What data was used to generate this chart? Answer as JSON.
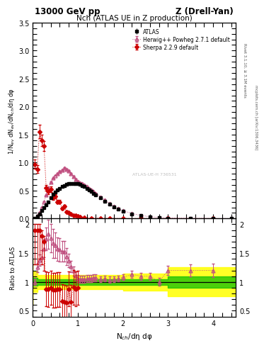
{
  "title_top": "13000 GeV pp",
  "title_right": "Z (Drell-Yan)",
  "plot_title": "Nch (ATLAS UE in Z production)",
  "ylabel_main": "1/N$_{ev}$ dN$_{ev}$/dN$_{ch}$/dη dφ",
  "ylabel_ratio": "Ratio to ATLAS",
  "xlabel": "N$_{ch}$/dη dφ",
  "right_label_top": "Rivet 3.1.10, ≥ 3.1M events",
  "right_label_bot": "mcplots.cern.ch [arXiv:1306.3436]",
  "watermark": "ATLAS-UE-H 736531",
  "legend": [
    "ATLAS",
    "Herwig++ Powheg 2.7.1 default",
    "Sherpa 2.2.9 default"
  ],
  "atlas_x": [
    0.05,
    0.1,
    0.15,
    0.2,
    0.25,
    0.3,
    0.35,
    0.4,
    0.45,
    0.5,
    0.55,
    0.6,
    0.65,
    0.7,
    0.75,
    0.8,
    0.85,
    0.9,
    0.95,
    1.0,
    1.05,
    1.1,
    1.15,
    1.2,
    1.25,
    1.3,
    1.35,
    1.4,
    1.5,
    1.6,
    1.7,
    1.8,
    1.9,
    2.0,
    2.2,
    2.4,
    2.6,
    2.8,
    3.0,
    3.5,
    4.0,
    4.4
  ],
  "atlas_y": [
    0.01,
    0.04,
    0.08,
    0.14,
    0.19,
    0.24,
    0.3,
    0.37,
    0.43,
    0.47,
    0.51,
    0.54,
    0.57,
    0.59,
    0.61,
    0.62,
    0.63,
    0.63,
    0.63,
    0.62,
    0.61,
    0.59,
    0.57,
    0.54,
    0.51,
    0.48,
    0.45,
    0.42,
    0.37,
    0.31,
    0.26,
    0.21,
    0.17,
    0.13,
    0.08,
    0.05,
    0.03,
    0.02,
    0.01,
    0.005,
    0.002,
    0.001
  ],
  "atlas_yerr": [
    0.002,
    0.003,
    0.004,
    0.005,
    0.006,
    0.006,
    0.007,
    0.008,
    0.008,
    0.009,
    0.009,
    0.009,
    0.009,
    0.009,
    0.009,
    0.009,
    0.009,
    0.009,
    0.009,
    0.009,
    0.009,
    0.009,
    0.008,
    0.008,
    0.008,
    0.007,
    0.007,
    0.007,
    0.006,
    0.006,
    0.005,
    0.005,
    0.004,
    0.004,
    0.003,
    0.002,
    0.002,
    0.001,
    0.001,
    0.001,
    0.0005,
    0.0002
  ],
  "herwig_x": [
    0.05,
    0.1,
    0.15,
    0.2,
    0.25,
    0.3,
    0.35,
    0.4,
    0.45,
    0.5,
    0.55,
    0.6,
    0.65,
    0.7,
    0.75,
    0.8,
    0.85,
    0.9,
    0.95,
    1.0,
    1.05,
    1.1,
    1.15,
    1.2,
    1.25,
    1.3,
    1.35,
    1.4,
    1.5,
    1.6,
    1.7,
    1.8,
    1.9,
    2.0,
    2.2,
    2.4,
    2.6,
    2.8,
    3.0,
    3.5,
    4.0,
    4.4
  ],
  "herwig_y": [
    0.01,
    0.05,
    0.11,
    0.2,
    0.3,
    0.42,
    0.55,
    0.65,
    0.72,
    0.77,
    0.8,
    0.84,
    0.87,
    0.9,
    0.88,
    0.85,
    0.8,
    0.75,
    0.7,
    0.66,
    0.64,
    0.62,
    0.6,
    0.57,
    0.54,
    0.51,
    0.48,
    0.45,
    0.39,
    0.33,
    0.27,
    0.22,
    0.18,
    0.14,
    0.09,
    0.055,
    0.033,
    0.02,
    0.012,
    0.006,
    0.003,
    0.001
  ],
  "herwig_yerr": [
    0.001,
    0.002,
    0.003,
    0.004,
    0.005,
    0.006,
    0.008,
    0.009,
    0.01,
    0.011,
    0.011,
    0.012,
    0.013,
    0.013,
    0.014,
    0.014,
    0.013,
    0.013,
    0.012,
    0.012,
    0.011,
    0.011,
    0.01,
    0.01,
    0.009,
    0.009,
    0.009,
    0.008,
    0.007,
    0.006,
    0.006,
    0.005,
    0.004,
    0.004,
    0.003,
    0.002,
    0.002,
    0.001,
    0.001,
    0.001,
    0.0005,
    0.0002
  ],
  "sherpa_x": [
    0.05,
    0.1,
    0.15,
    0.2,
    0.25,
    0.3,
    0.35,
    0.4,
    0.45,
    0.5,
    0.55,
    0.6,
    0.65,
    0.7,
    0.75,
    0.8,
    0.85,
    0.9,
    0.95,
    1.0,
    1.05,
    1.15,
    1.3,
    1.5,
    1.7,
    2.0,
    2.4,
    3.0,
    4.0
  ],
  "sherpa_y": [
    0.97,
    0.88,
    1.55,
    1.4,
    1.3,
    0.55,
    0.48,
    0.52,
    0.37,
    0.4,
    0.3,
    0.3,
    0.18,
    0.22,
    0.12,
    0.1,
    0.08,
    0.06,
    0.05,
    0.04,
    0.025,
    0.015,
    0.01,
    0.006,
    0.004,
    0.002,
    0.001,
    0.0005,
    0.0001
  ],
  "sherpa_yerr": [
    0.08,
    0.07,
    0.12,
    0.1,
    0.09,
    0.05,
    0.04,
    0.05,
    0.04,
    0.04,
    0.03,
    0.03,
    0.025,
    0.025,
    0.02,
    0.015,
    0.012,
    0.01,
    0.008,
    0.006,
    0.005,
    0.004,
    0.003,
    0.002,
    0.001,
    0.001,
    0.0005,
    0.0002,
    0.0001
  ],
  "ratio_herwig_x": [
    0.05,
    0.1,
    0.15,
    0.2,
    0.25,
    0.3,
    0.35,
    0.4,
    0.45,
    0.5,
    0.55,
    0.6,
    0.65,
    0.7,
    0.75,
    0.8,
    0.85,
    0.9,
    0.95,
    1.0,
    1.05,
    1.1,
    1.15,
    1.2,
    1.25,
    1.3,
    1.35,
    1.4,
    1.5,
    1.6,
    1.7,
    1.8,
    1.9,
    2.0,
    2.2,
    2.4,
    2.6,
    2.8,
    3.0,
    3.5,
    4.0
  ],
  "ratio_herwig_y": [
    1.0,
    1.25,
    1.38,
    1.43,
    1.58,
    1.75,
    1.83,
    1.76,
    1.67,
    1.64,
    1.57,
    1.56,
    1.53,
    1.53,
    1.44,
    1.37,
    1.27,
    1.19,
    1.11,
    1.06,
    1.05,
    1.05,
    1.05,
    1.06,
    1.06,
    1.06,
    1.07,
    1.07,
    1.05,
    1.06,
    1.04,
    1.05,
    1.06,
    1.08,
    1.13,
    1.1,
    1.1,
    1.0,
    1.2,
    1.2,
    1.2
  ],
  "ratio_herwig_yerr": [
    0.05,
    0.08,
    0.1,
    0.12,
    0.15,
    0.2,
    0.25,
    0.25,
    0.25,
    0.22,
    0.2,
    0.2,
    0.18,
    0.18,
    0.15,
    0.12,
    0.1,
    0.08,
    0.07,
    0.06,
    0.06,
    0.06,
    0.06,
    0.06,
    0.06,
    0.06,
    0.06,
    0.06,
    0.05,
    0.05,
    0.05,
    0.05,
    0.05,
    0.05,
    0.06,
    0.06,
    0.06,
    0.07,
    0.08,
    0.1,
    0.12
  ],
  "ratio_sherpa_x": [
    0.05,
    0.1,
    0.15,
    0.2,
    0.25,
    0.3,
    0.35,
    0.4,
    0.45,
    0.5,
    0.55,
    0.6,
    0.65,
    0.7,
    0.75,
    0.8,
    0.85,
    0.9,
    0.95,
    1.0
  ],
  "ratio_sherpa_y": [
    1.9,
    1.9,
    1.9,
    1.8,
    1.7,
    0.88,
    0.87,
    0.9,
    0.86,
    0.86,
    0.87,
    0.87,
    0.66,
    0.65,
    0.64,
    0.88,
    0.65,
    0.91,
    0.88,
    0.9
  ],
  "ratio_sherpa_yerr_lo": [
    0.6,
    0.6,
    0.5,
    0.5,
    0.5,
    0.3,
    0.3,
    0.3,
    0.3,
    0.3,
    0.3,
    0.3,
    0.3,
    0.3,
    0.3,
    0.3,
    0.3,
    0.3,
    0.3,
    0.3
  ],
  "ratio_sherpa_yerr_hi": [
    0.1,
    0.1,
    0.1,
    0.1,
    0.1,
    0.3,
    0.3,
    0.3,
    0.3,
    0.3,
    0.3,
    0.3,
    0.3,
    0.3,
    0.3,
    0.3,
    0.3,
    0.3,
    0.3,
    0.3
  ],
  "band_x": [
    0.0,
    0.1,
    0.5,
    1.0,
    2.0,
    3.0,
    4.0,
    4.5
  ],
  "band_green_low": [
    0.9,
    0.93,
    0.95,
    0.95,
    0.95,
    0.95,
    0.9,
    0.9
  ],
  "band_green_high": [
    1.1,
    1.07,
    1.05,
    1.05,
    1.05,
    1.05,
    1.1,
    1.1
  ],
  "band_yellow_low": [
    0.6,
    0.82,
    0.88,
    0.88,
    0.88,
    0.85,
    0.75,
    0.75
  ],
  "band_yellow_high": [
    1.4,
    1.18,
    1.12,
    1.12,
    1.12,
    1.15,
    1.25,
    1.25
  ],
  "xlim": [
    0,
    4.5
  ],
  "ylim_main": [
    0,
    3.5
  ],
  "ylim_ratio": [
    0.4,
    2.1
  ],
  "yticks_main": [
    0.0,
    0.5,
    1.0,
    1.5,
    2.0,
    2.5,
    3.0,
    3.5
  ],
  "yticks_ratio": [
    0.5,
    1.0,
    1.5,
    2.0
  ],
  "xticks": [
    0,
    1,
    2,
    3,
    4
  ],
  "color_atlas": "#000000",
  "color_herwig": "#c05080",
  "color_sherpa": "#cc0000",
  "bg_color": "#ffffff"
}
